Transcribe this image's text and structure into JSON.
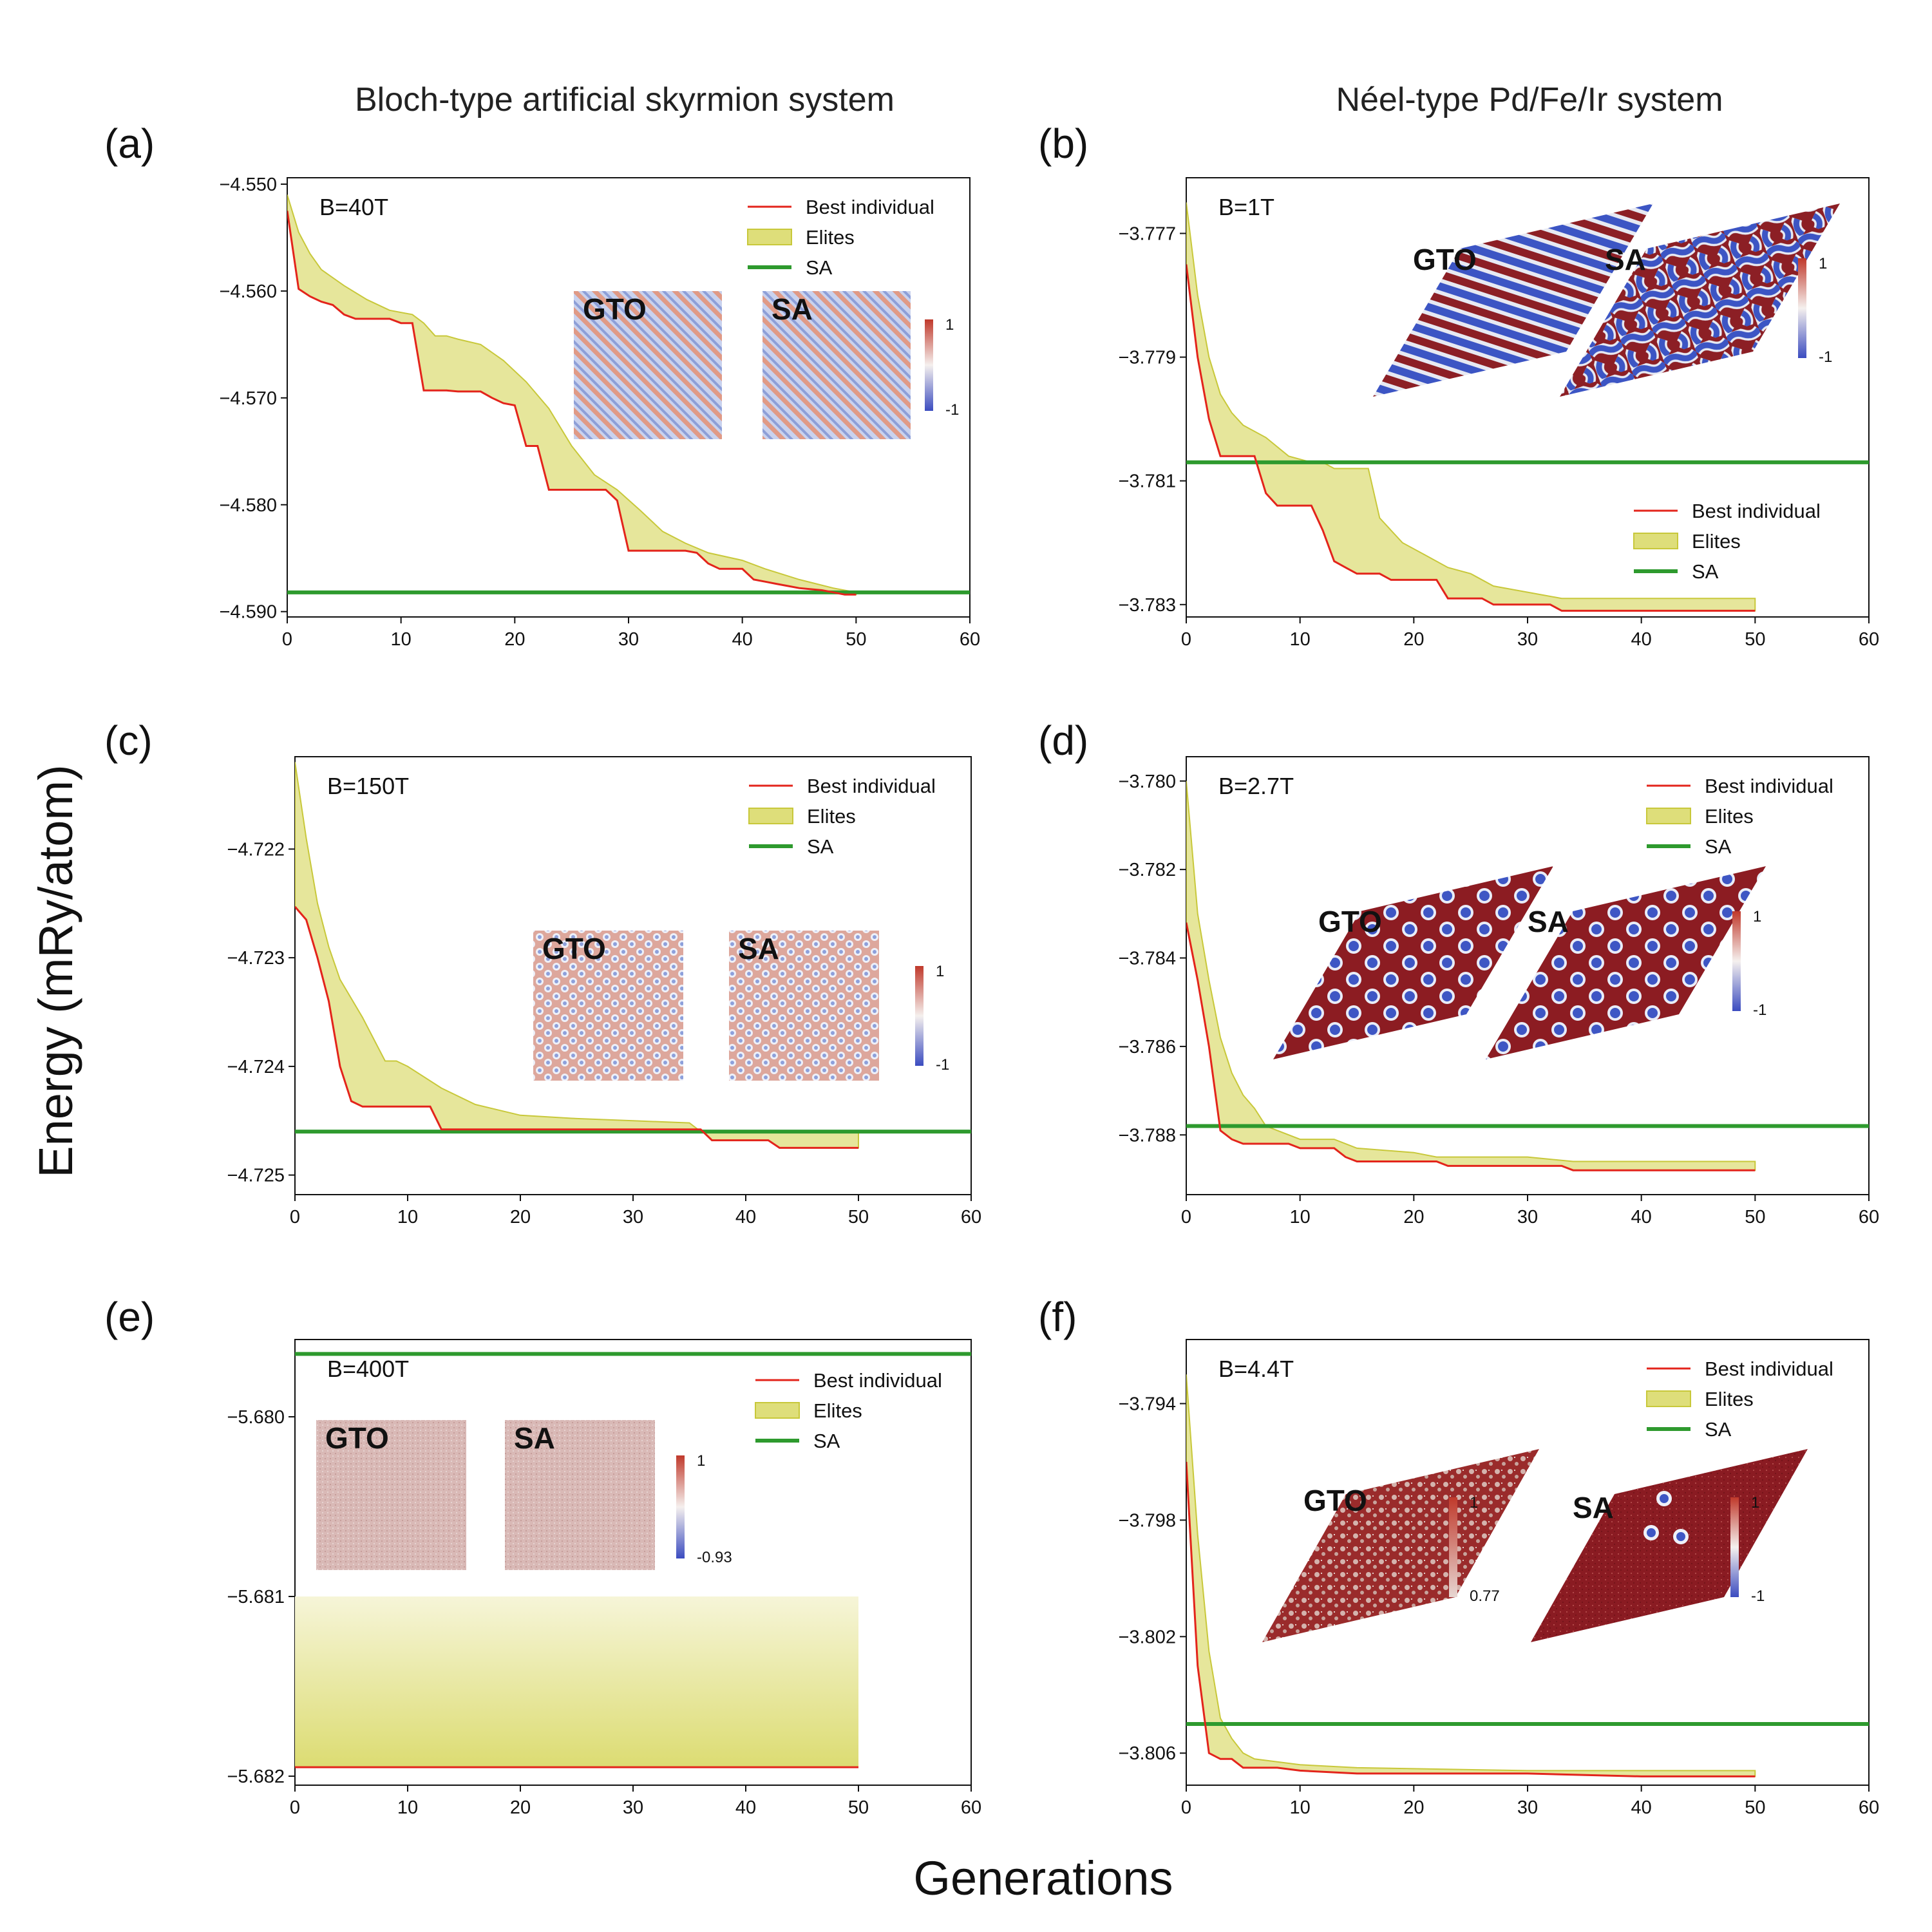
{
  "figure": {
    "col_titles": [
      "Bloch-type artificial skyrmion system",
      "Néel-type Pd/Fe/Ir system"
    ],
    "ylabel": "Energy (mRy/atom)",
    "xlabel": "Generations",
    "colors": {
      "best": "#e3241b",
      "elites_edge": "#c8c83a",
      "elites_fill": "#dede7a",
      "sa": "#2e9a2e",
      "cb_high": "#c0392b",
      "cb_mid": "#f5f0ee",
      "cb_low": "#3b4cc0"
    },
    "legend": {
      "best": "Best individual",
      "elites": "Elites",
      "sa": "SA"
    }
  },
  "chart_data": [
    {
      "id": "a",
      "label": "(a)",
      "type": "line",
      "field": "B=40T",
      "xlim": [
        0,
        60
      ],
      "ylim": [
        -4.5905,
        -4.5494
      ],
      "xticks": [
        "0",
        "10",
        "20",
        "30",
        "40",
        "50",
        "60"
      ],
      "yticks": [
        {
          "v": -4.55,
          "t": "−4.550"
        },
        {
          "v": -4.56,
          "t": "−4.560"
        },
        {
          "v": -4.57,
          "t": "−4.570"
        },
        {
          "v": -4.58,
          "t": "−4.580"
        },
        {
          "v": -4.59,
          "t": "−4.590"
        }
      ],
      "best": [
        [
          0,
          -4.5525
        ],
        [
          1,
          -4.5598
        ],
        [
          2,
          -4.5605
        ],
        [
          3,
          -4.561
        ],
        [
          4,
          -4.5613
        ],
        [
          5,
          -4.5622
        ],
        [
          6,
          -4.5626
        ],
        [
          7,
          -4.5626
        ],
        [
          8,
          -4.5626
        ],
        [
          9,
          -4.5626
        ],
        [
          10,
          -4.563
        ],
        [
          11,
          -4.563
        ],
        [
          12,
          -4.5693
        ],
        [
          13,
          -4.5693
        ],
        [
          14,
          -4.5693
        ],
        [
          15,
          -4.5694
        ],
        [
          16,
          -4.5694
        ],
        [
          17,
          -4.5694
        ],
        [
          18,
          -4.57
        ],
        [
          19,
          -4.5705
        ],
        [
          20,
          -4.5707
        ],
        [
          21,
          -4.5745
        ],
        [
          22,
          -4.5745
        ],
        [
          23,
          -4.5786
        ],
        [
          24,
          -4.5786
        ],
        [
          25,
          -4.5786
        ],
        [
          26,
          -4.5786
        ],
        [
          27,
          -4.5786
        ],
        [
          28,
          -4.5786
        ],
        [
          29,
          -4.5796
        ],
        [
          30,
          -4.5843
        ],
        [
          31,
          -4.5843
        ],
        [
          32,
          -4.5843
        ],
        [
          33,
          -4.5843
        ],
        [
          34,
          -4.5843
        ],
        [
          35,
          -4.5843
        ],
        [
          36,
          -4.5845
        ],
        [
          37,
          -4.5855
        ],
        [
          38,
          -4.586
        ],
        [
          39,
          -4.586
        ],
        [
          40,
          -4.586
        ],
        [
          41,
          -4.587
        ],
        [
          42,
          -4.5872
        ],
        [
          43,
          -4.5874
        ],
        [
          44,
          -4.5876
        ],
        [
          45,
          -4.5878
        ],
        [
          46,
          -4.5879
        ],
        [
          47,
          -4.588
        ],
        [
          48,
          -4.5882
        ],
        [
          49,
          -4.5884
        ],
        [
          50,
          -4.5884
        ]
      ],
      "elites_upper": [
        [
          0,
          -4.551
        ],
        [
          1,
          -4.5545
        ],
        [
          2,
          -4.5565
        ],
        [
          3,
          -4.558
        ],
        [
          5,
          -4.5595
        ],
        [
          7,
          -4.5608
        ],
        [
          9,
          -4.5618
        ],
        [
          11,
          -4.5622
        ],
        [
          12,
          -4.563
        ],
        [
          13,
          -4.5642
        ],
        [
          14,
          -4.5642
        ],
        [
          15,
          -4.5645
        ],
        [
          17,
          -4.565
        ],
        [
          19,
          -4.5665
        ],
        [
          21,
          -4.5685
        ],
        [
          23,
          -4.571
        ],
        [
          25,
          -4.5745
        ],
        [
          27,
          -4.5772
        ],
        [
          29,
          -4.5786
        ],
        [
          31,
          -4.5805
        ],
        [
          33,
          -4.5825
        ],
        [
          35,
          -4.5836
        ],
        [
          37,
          -4.5845
        ],
        [
          40,
          -4.5852
        ],
        [
          42,
          -4.586
        ],
        [
          45,
          -4.587
        ],
        [
          48,
          -4.5878
        ],
        [
          50,
          -4.5882
        ]
      ],
      "sa": -4.5882,
      "legend_pos": "upper-right",
      "insets": {
        "shape": "square",
        "pattern": "stripes",
        "labels": [
          "GTO",
          "SA"
        ],
        "cbar": [
          "1",
          "-1"
        ]
      }
    },
    {
      "id": "b",
      "label": "(b)",
      "type": "line",
      "field": "B=1T",
      "xlim": [
        0,
        60
      ],
      "ylim": [
        -3.7832,
        -3.7761
      ],
      "xticks": [
        "0",
        "10",
        "20",
        "30",
        "40",
        "50",
        "60"
      ],
      "yticks": [
        {
          "v": -3.777,
          "t": "−3.777"
        },
        {
          "v": -3.779,
          "t": "−3.779"
        },
        {
          "v": -3.781,
          "t": "−3.781"
        },
        {
          "v": -3.783,
          "t": "−3.783"
        }
      ],
      "best": [
        [
          0,
          -3.7775
        ],
        [
          1,
          -3.779
        ],
        [
          2,
          -3.78
        ],
        [
          3,
          -3.7806
        ],
        [
          4,
          -3.7806
        ],
        [
          5,
          -3.7806
        ],
        [
          6,
          -3.7806
        ],
        [
          7,
          -3.7812
        ],
        [
          8,
          -3.7814
        ],
        [
          9,
          -3.7814
        ],
        [
          10,
          -3.7814
        ],
        [
          11,
          -3.7814
        ],
        [
          12,
          -3.7818
        ],
        [
          13,
          -3.7823
        ],
        [
          14,
          -3.7824
        ],
        [
          15,
          -3.7825
        ],
        [
          16,
          -3.7825
        ],
        [
          17,
          -3.7825
        ],
        [
          18,
          -3.7826
        ],
        [
          19,
          -3.7826
        ],
        [
          20,
          -3.7826
        ],
        [
          21,
          -3.7826
        ],
        [
          22,
          -3.7826
        ],
        [
          23,
          -3.7829
        ],
        [
          24,
          -3.7829
        ],
        [
          25,
          -3.7829
        ],
        [
          26,
          -3.7829
        ],
        [
          27,
          -3.783
        ],
        [
          28,
          -3.783
        ],
        [
          29,
          -3.783
        ],
        [
          30,
          -3.783
        ],
        [
          31,
          -3.783
        ],
        [
          32,
          -3.783
        ],
        [
          33,
          -3.7831
        ],
        [
          40,
          -3.7831
        ],
        [
          50,
          -3.7831
        ]
      ],
      "elites_upper": [
        [
          0,
          -3.7765
        ],
        [
          1,
          -3.778
        ],
        [
          2,
          -3.779
        ],
        [
          3,
          -3.7796
        ],
        [
          4,
          -3.7799
        ],
        [
          5,
          -3.7801
        ],
        [
          7,
          -3.7803
        ],
        [
          9,
          -3.7806
        ],
        [
          11,
          -3.7807
        ],
        [
          12,
          -3.7807
        ],
        [
          13,
          -3.7808
        ],
        [
          15,
          -3.7808
        ],
        [
          16,
          -3.7808
        ],
        [
          17,
          -3.7816
        ],
        [
          19,
          -3.782
        ],
        [
          21,
          -3.7822
        ],
        [
          23,
          -3.7824
        ],
        [
          25,
          -3.7825
        ],
        [
          27,
          -3.7827
        ],
        [
          30,
          -3.7828
        ],
        [
          33,
          -3.7829
        ],
        [
          40,
          -3.7829
        ],
        [
          50,
          -3.7829
        ]
      ],
      "sa": -3.7807,
      "legend_pos": "lower-right",
      "insets": {
        "shape": "rhombus",
        "pattern": "labyrinth",
        "labels": [
          "GTO",
          "SA"
        ],
        "cbar": [
          "1",
          "-1"
        ]
      }
    },
    {
      "id": "c",
      "label": "(c)",
      "type": "line",
      "field": "B=150T",
      "xlim": [
        0,
        60
      ],
      "ylim": [
        -4.72518,
        -4.72115
      ],
      "xticks": [
        "0",
        "10",
        "20",
        "30",
        "40",
        "50",
        "60"
      ],
      "yticks": [
        {
          "v": -4.722,
          "t": "−4.722"
        },
        {
          "v": -4.723,
          "t": "−4.723"
        },
        {
          "v": -4.724,
          "t": "−4.724"
        },
        {
          "v": -4.725,
          "t": "−4.725"
        }
      ],
      "best": [
        [
          0,
          -4.72253
        ],
        [
          1,
          -4.72265
        ],
        [
          2,
          -4.723
        ],
        [
          3,
          -4.7234
        ],
        [
          4,
          -4.724
        ],
        [
          5,
          -4.72432
        ],
        [
          6,
          -4.72437
        ],
        [
          7,
          -4.72437
        ],
        [
          10,
          -4.72437
        ],
        [
          12,
          -4.72437
        ],
        [
          13,
          -4.72458
        ],
        [
          20,
          -4.72458
        ],
        [
          30,
          -4.72458
        ],
        [
          35,
          -4.72458
        ],
        [
          36,
          -4.72458
        ],
        [
          37,
          -4.72468
        ],
        [
          42,
          -4.72468
        ],
        [
          43,
          -4.72475
        ],
        [
          50,
          -4.72475
        ]
      ],
      "elites_upper": [
        [
          0,
          -4.7212
        ],
        [
          1,
          -4.7219
        ],
        [
          2,
          -4.7225
        ],
        [
          3,
          -4.7229
        ],
        [
          4,
          -4.7232
        ],
        [
          6,
          -4.72355
        ],
        [
          8,
          -4.72395
        ],
        [
          9,
          -4.72395
        ],
        [
          10,
          -4.724
        ],
        [
          13,
          -4.7242
        ],
        [
          16,
          -4.72435
        ],
        [
          20,
          -4.72445
        ],
        [
          25,
          -4.72448
        ],
        [
          30,
          -4.7245
        ],
        [
          35,
          -4.72452
        ],
        [
          36,
          -4.7246
        ],
        [
          40,
          -4.7246
        ],
        [
          50,
          -4.7246
        ]
      ],
      "sa": -4.7246,
      "legend_pos": "upper-right",
      "insets": {
        "shape": "square",
        "pattern": "lattice",
        "labels": [
          "GTO",
          "SA"
        ],
        "cbar": [
          "1",
          "-1"
        ]
      }
    },
    {
      "id": "d",
      "label": "(d)",
      "type": "line",
      "field": "B=2.7T",
      "xlim": [
        0,
        60
      ],
      "ylim": [
        -3.78935,
        -3.77945
      ],
      "xticks": [
        "0",
        "10",
        "20",
        "30",
        "40",
        "50",
        "60"
      ],
      "yticks": [
        {
          "v": -3.78,
          "t": "−3.780"
        },
        {
          "v": -3.782,
          "t": "−3.782"
        },
        {
          "v": -3.784,
          "t": "−3.784"
        },
        {
          "v": -3.786,
          "t": "−3.786"
        },
        {
          "v": -3.788,
          "t": "−3.788"
        }
      ],
      "best": [
        [
          0,
          -3.7832
        ],
        [
          1,
          -3.7845
        ],
        [
          2,
          -3.786
        ],
        [
          3,
          -3.7879
        ],
        [
          4,
          -3.7881
        ],
        [
          5,
          -3.7882
        ],
        [
          7,
          -3.7882
        ],
        [
          9,
          -3.7882
        ],
        [
          10,
          -3.7883
        ],
        [
          13,
          -3.7883
        ],
        [
          14,
          -3.7885
        ],
        [
          15,
          -3.7886
        ],
        [
          22,
          -3.7886
        ],
        [
          23,
          -3.7887
        ],
        [
          33,
          -3.7887
        ],
        [
          34,
          -3.7888
        ],
        [
          50,
          -3.7888
        ]
      ],
      "elites_upper": [
        [
          0,
          -3.78
        ],
        [
          1,
          -3.783
        ],
        [
          2,
          -3.7845
        ],
        [
          3,
          -3.7858
        ],
        [
          4,
          -3.7866
        ],
        [
          5,
          -3.7871
        ],
        [
          6,
          -3.7874
        ],
        [
          7,
          -3.7878
        ],
        [
          10,
          -3.7881
        ],
        [
          13,
          -3.7881
        ],
        [
          15,
          -3.7883
        ],
        [
          20,
          -3.7884
        ],
        [
          22,
          -3.7885
        ],
        [
          30,
          -3.7885
        ],
        [
          34,
          -3.7886
        ],
        [
          50,
          -3.7886
        ]
      ],
      "sa": -3.7878,
      "legend_pos": "upper-right",
      "insets": {
        "shape": "rhombus",
        "pattern": "lattice",
        "labels": [
          "GTO",
          "SA"
        ],
        "cbar": [
          "1",
          "-1"
        ]
      }
    },
    {
      "id": "e",
      "label": "(e)",
      "type": "line",
      "field": "B=400T",
      "xlim": [
        0,
        60
      ],
      "ylim": [
        -5.68205,
        -5.67957
      ],
      "xticks": [
        "0",
        "10",
        "20",
        "30",
        "40",
        "50",
        "60"
      ],
      "yticks": [
        {
          "v": -5.68,
          "t": "−5.680"
        },
        {
          "v": -5.681,
          "t": "−5.681"
        },
        {
          "v": -5.682,
          "t": "−5.682"
        }
      ],
      "best": [
        [
          0,
          -5.68195
        ],
        [
          50,
          -5.68195
        ]
      ],
      "elites_upper": [
        [
          0,
          -5.681
        ],
        [
          50,
          -5.681
        ]
      ],
      "sa": -5.67965,
      "legend_pos": "upper-right",
      "insets": {
        "shape": "square",
        "pattern": "uniform",
        "labels": [
          "GTO",
          "SA"
        ],
        "cbar": [
          "1",
          "-0.93"
        ]
      }
    },
    {
      "id": "f",
      "label": "(f)",
      "type": "line",
      "field": "B=4.4T",
      "xlim": [
        0,
        60
      ],
      "ylim": [
        -3.8071,
        -3.7918
      ],
      "xticks": [
        "0",
        "10",
        "20",
        "30",
        "40",
        "50",
        "60"
      ],
      "yticks": [
        {
          "v": -3.794,
          "t": "−3.794"
        },
        {
          "v": -3.798,
          "t": "−3.798"
        },
        {
          "v": -3.802,
          "t": "−3.802"
        },
        {
          "v": -3.806,
          "t": "−3.806"
        }
      ],
      "best": [
        [
          0,
          -3.796
        ],
        [
          1,
          -3.803
        ],
        [
          2,
          -3.806
        ],
        [
          3,
          -3.8062
        ],
        [
          4,
          -3.8062
        ],
        [
          5,
          -3.8065
        ],
        [
          8,
          -3.8065
        ],
        [
          10,
          -3.8066
        ],
        [
          15,
          -3.8067
        ],
        [
          20,
          -3.8067
        ],
        [
          30,
          -3.8067
        ],
        [
          40,
          -3.8068
        ],
        [
          50,
          -3.8068
        ]
      ],
      "elites_upper": [
        [
          0,
          -3.793
        ],
        [
          1,
          -3.7985
        ],
        [
          2,
          -3.8025
        ],
        [
          3,
          -3.8048
        ],
        [
          4,
          -3.8055
        ],
        [
          5,
          -3.806
        ],
        [
          6,
          -3.8062
        ],
        [
          8,
          -3.8063
        ],
        [
          10,
          -3.8064
        ],
        [
          15,
          -3.8065
        ],
        [
          30,
          -3.8066
        ],
        [
          50,
          -3.8066
        ]
      ],
      "sa": -3.805,
      "legend_pos": "upper-right",
      "insets": {
        "shape": "rhombus",
        "pattern": "mixed",
        "labels": [
          "GTO",
          "SA"
        ],
        "cbar": [
          "1",
          "0.77",
          "1",
          "-1"
        ]
      }
    }
  ]
}
